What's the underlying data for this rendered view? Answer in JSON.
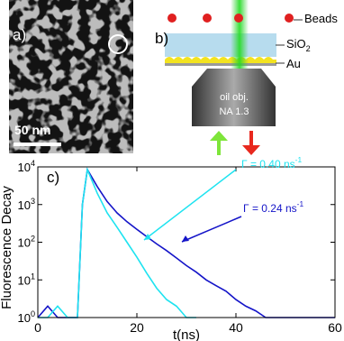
{
  "figure": {
    "panel_a": {
      "label": "a)",
      "scale_bar": "50 nm"
    },
    "panel_b": {
      "label": "b)",
      "beads": "Beads",
      "layer": "SiO_2",
      "metal": "Au",
      "objective": [
        "oil obj.",
        "NA 1.3"
      ]
    }
  },
  "chart_data": {
    "type": "line",
    "label": "c)",
    "x_label": "t(ns)",
    "y_label": "Fluorescence Decay",
    "log_y": true,
    "x": [
      0,
      2,
      4,
      6,
      8,
      9,
      10,
      12,
      14,
      16,
      18,
      20,
      22,
      24,
      26,
      28,
      30,
      32,
      34,
      36,
      38,
      40,
      42,
      44,
      46,
      48,
      50,
      52,
      54,
      56,
      58,
      60
    ],
    "series": [
      {
        "name": "Γ = 0.24 ns^-1",
        "color": "#1414c8",
        "values": [
          1,
          2,
          1,
          1,
          1,
          1000,
          8500,
          3000,
          1200,
          600,
          350,
          220,
          140,
          90,
          60,
          38,
          24,
          16,
          10,
          7,
          5,
          3,
          2,
          1.5,
          1,
          1,
          1,
          1,
          1,
          1,
          1,
          1
        ]
      },
      {
        "name": "Γ = 0.40 ns^-1",
        "color": "#1ee3f0",
        "values": [
          1,
          1,
          2,
          1,
          1,
          1000,
          8500,
          2000,
          600,
          250,
          100,
          40,
          15,
          6,
          3,
          2,
          1,
          1,
          null,
          null,
          null,
          null,
          null,
          null,
          null,
          null,
          null,
          null,
          null,
          null,
          null,
          null
        ]
      }
    ],
    "xlim": [
      0,
      60
    ],
    "xticks": [
      0,
      20,
      40,
      60
    ],
    "ylim": [
      1,
      10000
    ],
    "yticks": [
      {
        "value": 1,
        "label": "10^0"
      },
      {
        "value": 10,
        "label": "10^1"
      },
      {
        "value": 100,
        "label": "10^2"
      },
      {
        "value": 1000,
        "label": "10^3"
      },
      {
        "value": 10000,
        "label": "10^4"
      }
    ]
  }
}
